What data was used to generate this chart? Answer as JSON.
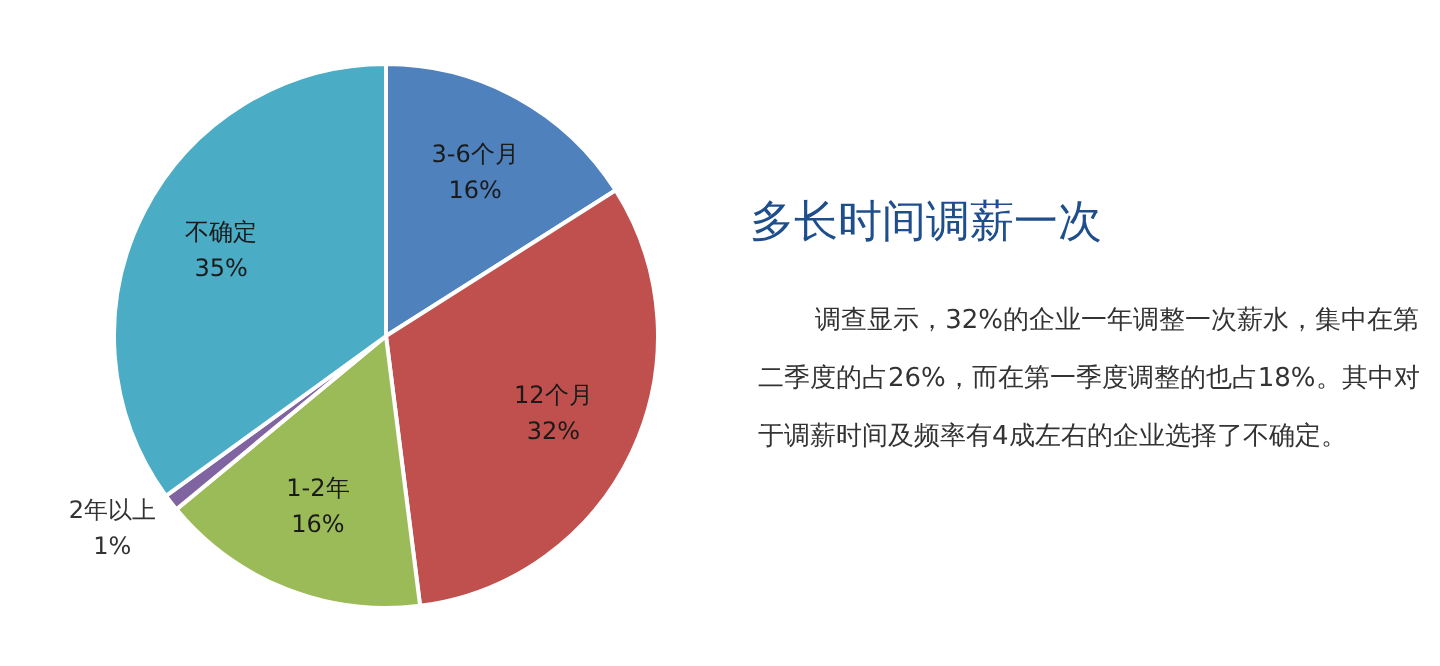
{
  "chart_data": {
    "type": "pie",
    "title": "多长时间调薪一次",
    "annotations": [
      "调查显示，32%的企业一年调整一次薪水，集中在第二季度的占26%，而在第一季度调整的也占18%。其中对于调薪时间及频率有4成左右的企业选择了不确定。"
    ],
    "categories": [
      "3-6个月",
      "12个月",
      "1-2年",
      "2年以上",
      "不确定"
    ],
    "values": [
      16,
      32,
      16,
      1,
      35
    ],
    "value_labels": [
      "16%",
      "32%",
      "16%",
      "1%",
      "35%"
    ],
    "colors": [
      "#4f81bd",
      "#c0504d",
      "#9bbb59",
      "#8064a2",
      "#4bacc6"
    ],
    "legend": false
  }
}
